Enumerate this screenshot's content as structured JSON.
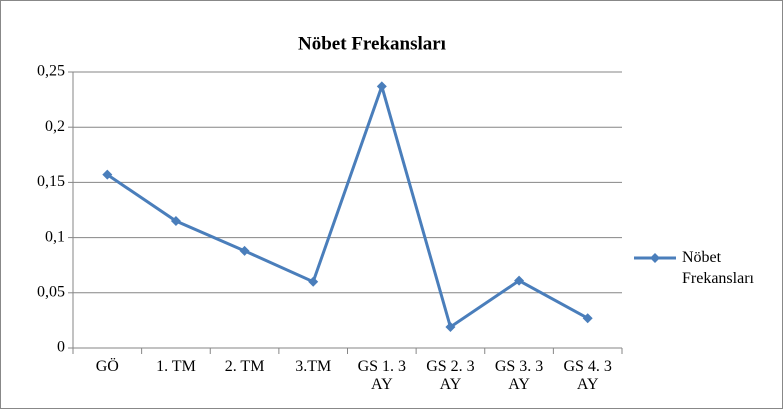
{
  "chart_data": {
    "type": "line",
    "title": "Nöbet Frekansları",
    "categories": [
      "GÖ",
      "1. TM",
      "2. TM",
      "3.TM",
      "GS 1. 3 AY",
      "GS 2. 3 AY",
      "GS 3. 3 AY",
      "GS 4. 3 AY"
    ],
    "series": [
      {
        "name": "Nöbet Frekansları",
        "color": "#4a7ebb",
        "values": [
          0.157,
          0.115,
          0.088,
          0.06,
          0.237,
          0.019,
          0.061,
          0.027
        ]
      }
    ],
    "ylim": [
      0,
      0.25
    ],
    "yticks": [
      0,
      {
        "value": 0.05,
        "label": "0,05"
      },
      {
        "value": 0.1,
        "label": "0,1"
      },
      {
        "value": 0.15,
        "label": "0,15"
      },
      {
        "value": 0.2,
        "label": "0,2"
      },
      {
        "value": 0.25,
        "label": "0,25"
      }
    ],
    "grid": true,
    "legend": "right"
  }
}
